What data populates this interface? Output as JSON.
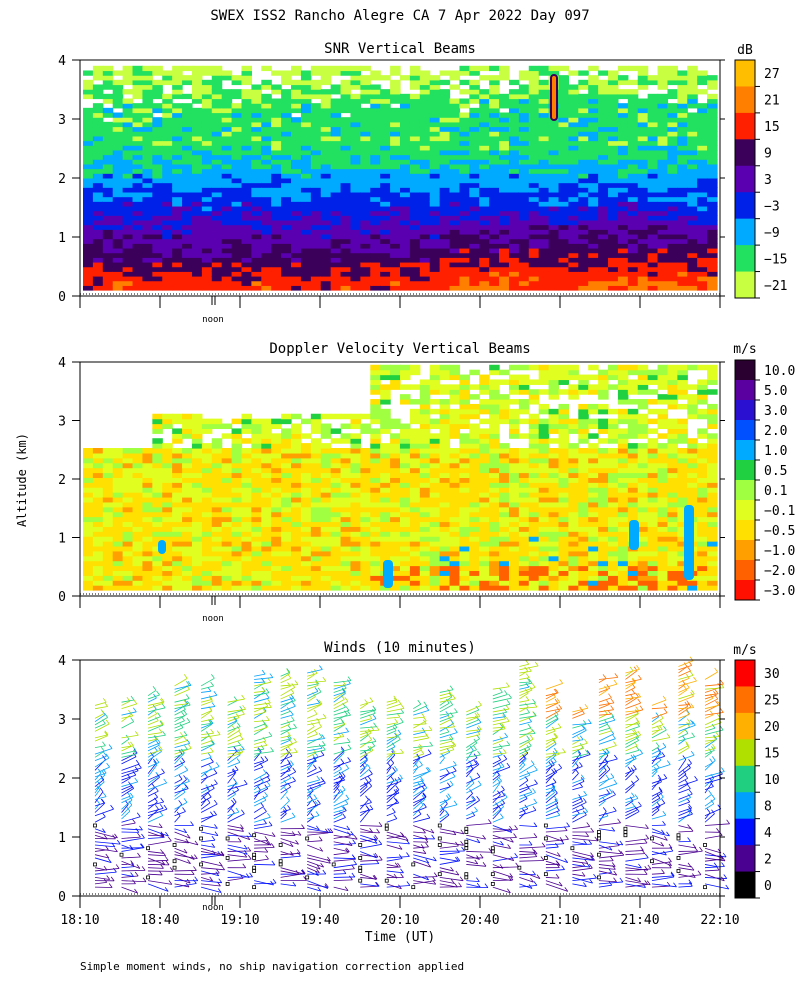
{
  "title": "SWEX ISS2 Rancho Alegre CA   7 Apr 2022 Day 097",
  "footnote": "Simple moment winds, no ship navigation correction applied",
  "shared_ylabel": "Altitude (km)",
  "chart_data": [
    {
      "type": "heatmap",
      "title": "SNR Vertical Beams",
      "ylim": [
        0,
        4
      ],
      "yticks": [
        "0",
        "1",
        "2",
        "3",
        "4"
      ],
      "xlim": [
        "18:10",
        "22:10"
      ],
      "noon_marker": "noon",
      "colorbar": {
        "unit": "dB",
        "labels": [
          "27",
          "21",
          "15",
          "9",
          "3",
          "−3",
          "−9",
          "−15",
          "−21"
        ],
        "colors": [
          "#ffbf00",
          "#ff8000",
          "#ff2000",
          "#3a005a",
          "#5a00b0",
          "#0022e8",
          "#00aaff",
          "#22e060",
          "#c8ff40"
        ]
      },
      "altitude_profile": [
        {
          "altitude_km": 0.2,
          "value": 15
        },
        {
          "altitude_km": 0.5,
          "value": 9
        },
        {
          "altitude_km": 1.0,
          "value": 3
        },
        {
          "altitude_km": 1.5,
          "value": -3
        },
        {
          "altitude_km": 2.0,
          "value": -9
        },
        {
          "altitude_km": 2.5,
          "value": -15
        },
        {
          "altitude_km": 3.2,
          "value": -15
        },
        {
          "altitude_km": 3.8,
          "value": -21
        }
      ]
    },
    {
      "type": "heatmap",
      "title": "Doppler Velocity Vertical Beams",
      "ylim": [
        0,
        4
      ],
      "yticks": [
        "0",
        "1",
        "2",
        "3",
        "4"
      ],
      "xlim": [
        "18:10",
        "22:10"
      ],
      "noon_marker": "noon",
      "colorbar": {
        "unit": "m/s",
        "labels": [
          "10.0",
          "5.0",
          "3.0",
          "2.0",
          "1.0",
          "0.5",
          "0.1",
          "−0.1",
          "−0.5",
          "−1.0",
          "−2.0",
          "−3.0"
        ],
        "colors": [
          "#2a0030",
          "#5a00a0",
          "#2a10d0",
          "#0050ff",
          "#00aaff",
          "#20d040",
          "#a0ff40",
          "#e0ff20",
          "#ffe000",
          "#ffa000",
          "#ff6000",
          "#ff1000"
        ]
      },
      "dominant_values": {
        "below_2.5_km": -0.5,
        "above_2.5_km": -0.1
      }
    },
    {
      "type": "scatter",
      "title": "Winds (10 minutes)",
      "xlabel": "Time (UT)",
      "xticks": [
        "18:10",
        "18:40",
        "19:10",
        "19:40",
        "20:10",
        "20:40",
        "21:10",
        "21:40",
        "22:10"
      ],
      "ylim": [
        0,
        4
      ],
      "yticks": [
        "0",
        "1",
        "2",
        "3",
        "4"
      ],
      "noon_marker": "noon",
      "colorbar": {
        "unit": "m/s",
        "labels": [
          "30",
          "25",
          "20",
          "15",
          "10",
          "8",
          "4",
          "2",
          "0"
        ],
        "colors": [
          "#ff0000",
          "#ff7000",
          "#ffb000",
          "#b0e000",
          "#20d080",
          "#00a0ff",
          "#0010ff",
          "#4a0090",
          "#000000"
        ]
      }
    }
  ]
}
